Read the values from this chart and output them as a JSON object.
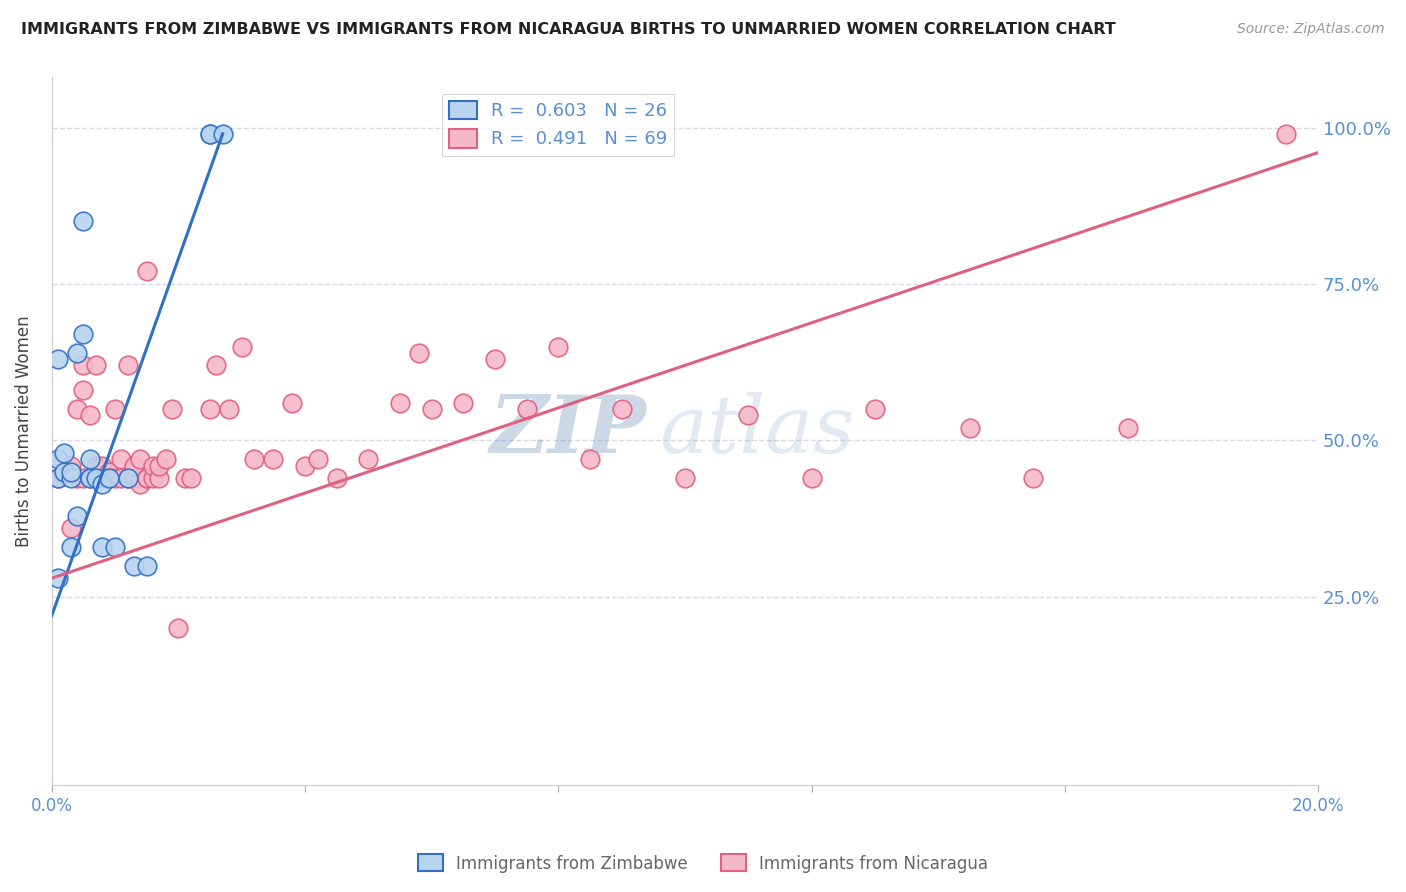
{
  "title": "IMMIGRANTS FROM ZIMBABWE VS IMMIGRANTS FROM NICARAGUA BIRTHS TO UNMARRIED WOMEN CORRELATION CHART",
  "source": "Source: ZipAtlas.com",
  "ylabel": "Births to Unmarried Women",
  "xmin": 0.0,
  "xmax": 0.2,
  "ymin": -0.05,
  "ymax": 1.08,
  "yticks": [
    0.25,
    0.5,
    0.75,
    1.0
  ],
  "ytick_labels": [
    "25.0%",
    "50.0%",
    "75.0%",
    "100.0%"
  ],
  "xticks": [
    0.0,
    0.04,
    0.08,
    0.12,
    0.16,
    0.2
  ],
  "xtick_labels": [
    "0.0%",
    "",
    "",
    "",
    "",
    "20.0%"
  ],
  "zimbabwe_color": "#b8d4ee",
  "nicaragua_color": "#f5b8c8",
  "zimbabwe_line_color": "#3070c8",
  "nicaragua_line_color": "#e06080",
  "R_zimbabwe": 0.603,
  "N_zimbabwe": 26,
  "R_nicaragua": 0.491,
  "N_nicaragua": 69,
  "watermark_zip": "ZIP",
  "watermark_atlas": "atlas",
  "axis_color": "#5b8fd4",
  "grid_color": "#d8d8e8",
  "zimbabwe_x": [
    0.001,
    0.001,
    0.001,
    0.001,
    0.002,
    0.002,
    0.003,
    0.003,
    0.003,
    0.004,
    0.004,
    0.005,
    0.005,
    0.006,
    0.006,
    0.007,
    0.008,
    0.008,
    0.009,
    0.01,
    0.012,
    0.013,
    0.015,
    0.025,
    0.025,
    0.027
  ],
  "zimbabwe_y": [
    0.28,
    0.44,
    0.47,
    0.63,
    0.45,
    0.48,
    0.44,
    0.45,
    0.33,
    0.38,
    0.64,
    0.67,
    0.85,
    0.44,
    0.47,
    0.44,
    0.33,
    0.43,
    0.44,
    0.33,
    0.44,
    0.3,
    0.3,
    0.99,
    0.99,
    0.99
  ],
  "nicaragua_x": [
    0.001,
    0.002,
    0.003,
    0.003,
    0.004,
    0.004,
    0.005,
    0.005,
    0.005,
    0.006,
    0.006,
    0.007,
    0.007,
    0.007,
    0.007,
    0.008,
    0.008,
    0.009,
    0.009,
    0.01,
    0.01,
    0.011,
    0.011,
    0.012,
    0.012,
    0.013,
    0.013,
    0.014,
    0.014,
    0.015,
    0.015,
    0.015,
    0.016,
    0.016,
    0.017,
    0.017,
    0.018,
    0.019,
    0.02,
    0.021,
    0.022,
    0.025,
    0.026,
    0.028,
    0.03,
    0.032,
    0.035,
    0.038,
    0.04,
    0.042,
    0.045,
    0.05,
    0.055,
    0.058,
    0.06,
    0.065,
    0.07,
    0.075,
    0.08,
    0.085,
    0.09,
    0.1,
    0.11,
    0.12,
    0.13,
    0.145,
    0.155,
    0.17,
    0.195
  ],
  "nicaragua_y": [
    0.44,
    0.45,
    0.36,
    0.46,
    0.55,
    0.44,
    0.58,
    0.62,
    0.44,
    0.44,
    0.54,
    0.44,
    0.45,
    0.46,
    0.62,
    0.44,
    0.46,
    0.45,
    0.44,
    0.44,
    0.55,
    0.44,
    0.47,
    0.44,
    0.62,
    0.44,
    0.46,
    0.43,
    0.47,
    0.44,
    0.44,
    0.77,
    0.44,
    0.46,
    0.44,
    0.46,
    0.47,
    0.55,
    0.2,
    0.44,
    0.44,
    0.55,
    0.62,
    0.55,
    0.65,
    0.47,
    0.47,
    0.56,
    0.46,
    0.47,
    0.44,
    0.47,
    0.56,
    0.64,
    0.55,
    0.56,
    0.63,
    0.55,
    0.65,
    0.47,
    0.55,
    0.44,
    0.54,
    0.44,
    0.55,
    0.52,
    0.44,
    0.52,
    0.99
  ],
  "zim_line_x0": 0.0,
  "zim_line_y0": 0.22,
  "zim_line_x1": 0.027,
  "zim_line_y1": 0.99,
  "nic_line_x0": 0.0,
  "nic_line_y0": 0.28,
  "nic_line_x1": 0.2,
  "nic_line_y1": 0.96
}
